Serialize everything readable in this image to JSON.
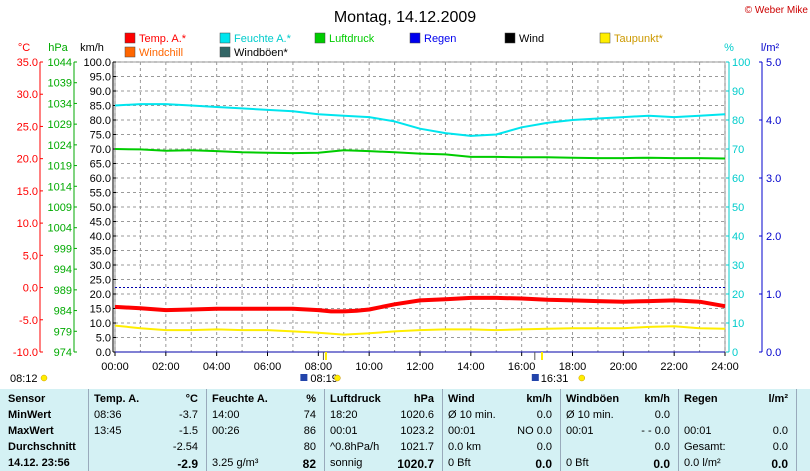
{
  "header": {
    "date_title": "Montag, 14.12.2009",
    "copyright": "© Weber Mike"
  },
  "legend": [
    {
      "label": "Temp. A.*",
      "color": "#ff0000"
    },
    {
      "label": "Feuchte A.*",
      "color": "#00e5ee"
    },
    {
      "label": "Luftdruck",
      "color": "#00cc00"
    },
    {
      "label": "Regen",
      "color": "#0000ee"
    },
    {
      "label": "Wind",
      "color": "#000000"
    },
    {
      "label": "Taupunkt*",
      "color": "#ffee00"
    },
    {
      "label": "Windchill",
      "color": "#ff6600"
    },
    {
      "label": "Windböen*",
      "color": "#336666"
    }
  ],
  "axis_units": {
    "temp": "°C",
    "pressure": "hPa",
    "wind": "km/h",
    "humidity": "%",
    "rain": "l/m²"
  },
  "chart_data": {
    "type": "line",
    "x_labels": [
      "00:00",
      "02:00",
      "04:00",
      "06:00",
      "08:00",
      "10:00",
      "12:00",
      "14:00",
      "16:00",
      "18:00",
      "20:00",
      "22:00",
      "24:00"
    ],
    "x_range_hours": [
      0,
      24
    ],
    "y_axes": {
      "temp": {
        "ticks": [
          "35.0",
          "30.0",
          "25.0",
          "20.0",
          "15.0",
          "10.0",
          "5.0",
          "0.0",
          "-5.0",
          "-10.0"
        ],
        "range": [
          -10,
          35
        ],
        "color": "#ff0000"
      },
      "pressure": {
        "ticks": [
          "1044",
          "1039",
          "1034",
          "1029",
          "1024",
          "1019",
          "1014",
          "1009",
          "1004",
          "999",
          "994",
          "989",
          "984",
          "979",
          "974"
        ],
        "range": [
          974,
          1044
        ],
        "color": "#00aa00"
      },
      "wind": {
        "ticks": [
          "100.0",
          "95.0",
          "90.0",
          "85.0",
          "80.0",
          "75.0",
          "70.0",
          "65.0",
          "60.0",
          "55.0",
          "50.0",
          "45.0",
          "40.0",
          "35.0",
          "30.0",
          "25.0",
          "20.0",
          "15.0",
          "10.0",
          "5.0",
          "0.0"
        ],
        "range": [
          0,
          100
        ],
        "color": "#000000"
      },
      "humidity": {
        "ticks": [
          "100",
          "90",
          "80",
          "70",
          "60",
          "50",
          "40",
          "30",
          "20",
          "10",
          "0"
        ],
        "range": [
          0,
          100
        ],
        "color": "#00cccc"
      },
      "rain": {
        "ticks": [
          "5.0",
          "4.0",
          "3.0",
          "2.0",
          "1.0",
          "0.0"
        ],
        "range": [
          0,
          5
        ],
        "color": "#0000cc"
      }
    },
    "series": [
      {
        "name": "Temp. A.*",
        "axis": "temp",
        "color": "#ff0000",
        "x": [
          0,
          1,
          2,
          3,
          4,
          5,
          6,
          7,
          8,
          8.5,
          9,
          9.5,
          10,
          11,
          12,
          13,
          14,
          15,
          16,
          17,
          18,
          19,
          20,
          21,
          22,
          23,
          24
        ],
        "y": [
          -3.0,
          -3.2,
          -3.5,
          -3.4,
          -3.3,
          -3.3,
          -3.3,
          -3.3,
          -3.5,
          -3.7,
          -3.7,
          -3.6,
          -3.4,
          -2.6,
          -2.0,
          -1.8,
          -1.6,
          -1.6,
          -1.7,
          -1.9,
          -2.0,
          -2.1,
          -2.2,
          -2.1,
          -2.0,
          -2.2,
          -2.9
        ]
      },
      {
        "name": "Taupunkt*",
        "axis": "temp",
        "color": "#ffee00",
        "x": [
          0,
          1,
          2,
          3,
          4,
          5,
          6,
          7,
          8,
          9,
          10,
          11,
          12,
          13,
          14,
          15,
          16,
          17,
          18,
          19,
          20,
          21,
          22,
          23,
          24
        ],
        "y": [
          -5.9,
          -6.3,
          -6.6,
          -6.6,
          -6.5,
          -6.6,
          -6.6,
          -6.8,
          -7.0,
          -7.3,
          -7.1,
          -6.8,
          -6.6,
          -6.5,
          -6.5,
          -6.6,
          -6.5,
          -6.4,
          -6.3,
          -6.3,
          -6.3,
          -6.1,
          -6.0,
          -6.3,
          -6.4
        ]
      },
      {
        "name": "Feuchte A.*",
        "axis": "humidity",
        "color": "#00e5ee",
        "x": [
          0,
          1,
          2,
          3,
          4,
          5,
          6,
          7,
          8,
          9,
          10,
          11,
          12,
          13,
          14,
          15,
          16,
          17,
          18,
          19,
          20,
          21,
          22,
          23,
          24
        ],
        "y": [
          85,
          85.5,
          85.5,
          85,
          84.5,
          84,
          83.5,
          83,
          82,
          81.5,
          81,
          79.5,
          77,
          75.5,
          74.5,
          75,
          77.5,
          79,
          80,
          80.5,
          81,
          81.5,
          81,
          81.5,
          82
        ]
      },
      {
        "name": "Luftdruck",
        "axis": "pressure",
        "color": "#00cc00",
        "x": [
          0,
          1,
          2,
          3,
          4,
          5,
          6,
          7,
          8,
          9,
          10,
          11,
          12,
          13,
          14,
          15,
          16,
          17,
          18,
          19,
          20,
          21,
          22,
          23,
          24
        ],
        "y": [
          1023.0,
          1022.9,
          1022.6,
          1022.7,
          1022.5,
          1022.2,
          1022.1,
          1022.0,
          1022.1,
          1022.7,
          1022.5,
          1022.2,
          1021.9,
          1021.7,
          1021.1,
          1021.1,
          1021.0,
          1021.0,
          1020.9,
          1020.8,
          1020.8,
          1020.9,
          1020.8,
          1020.8,
          1020.7
        ]
      },
      {
        "name": "Regen",
        "axis": "rain",
        "color": "#0000aa",
        "x": [
          0,
          24
        ],
        "y": [
          0,
          0
        ]
      }
    ],
    "zero_reference": {
      "axis": "temp",
      "value": 0
    }
  },
  "sun": {
    "sunrise": "08:12",
    "sunset": "16:31",
    "moonrise": "08:19",
    "moon_mark": "16:31"
  },
  "stats": {
    "sensor": {
      "header": "Sensor",
      "rows": [
        "MinWert",
        "MaxWert",
        "Durchschnitt",
        "14.12. 23:56"
      ]
    },
    "temp": {
      "header": "Temp. A.",
      "unit": "°C",
      "rows": [
        [
          "08:36",
          "-3.7"
        ],
        [
          "13:45",
          "-1.5"
        ],
        [
          "",
          "-2.54"
        ],
        [
          "",
          "-2.9"
        ]
      ]
    },
    "humidity": {
      "header": "Feuchte A.",
      "unit": "%",
      "rows": [
        [
          "14:00",
          "74"
        ],
        [
          "00:26",
          "86"
        ],
        [
          "",
          "80"
        ],
        [
          "3.25 g/m³",
          "82"
        ]
      ]
    },
    "pressure": {
      "header": "Luftdruck",
      "unit": "hPa",
      "rows": [
        [
          "18:20",
          "1020.6"
        ],
        [
          "00:01",
          "1023.2"
        ],
        [
          "^0.8hPa/h",
          "1021.7"
        ],
        [
          "sonnig",
          "1020.7"
        ]
      ]
    },
    "wind": {
      "header": "Wind",
      "unit": "km/h",
      "rows": [
        [
          "Ø 10 min.",
          "0.0"
        ],
        [
          "00:01",
          "NO 0.0"
        ],
        [
          "0.0 km",
          "0.0"
        ],
        [
          "0 Bft",
          "0.0"
        ]
      ]
    },
    "gust": {
      "header": "Windböen",
      "unit": "km/h",
      "rows": [
        [
          "Ø 10 min.",
          "0.0"
        ],
        [
          "00:01",
          "- - 0.0"
        ],
        [
          "",
          "0.0"
        ],
        [
          "0 Bft",
          "0.0"
        ]
      ]
    },
    "rain": {
      "header": "Regen",
      "unit": "l/m²",
      "rows": [
        [
          "",
          ""
        ],
        [
          "00:01",
          "0.0"
        ],
        [
          "Gesamt:",
          "0.0"
        ],
        [
          "0.0 l/m²",
          "0.0"
        ]
      ]
    }
  }
}
